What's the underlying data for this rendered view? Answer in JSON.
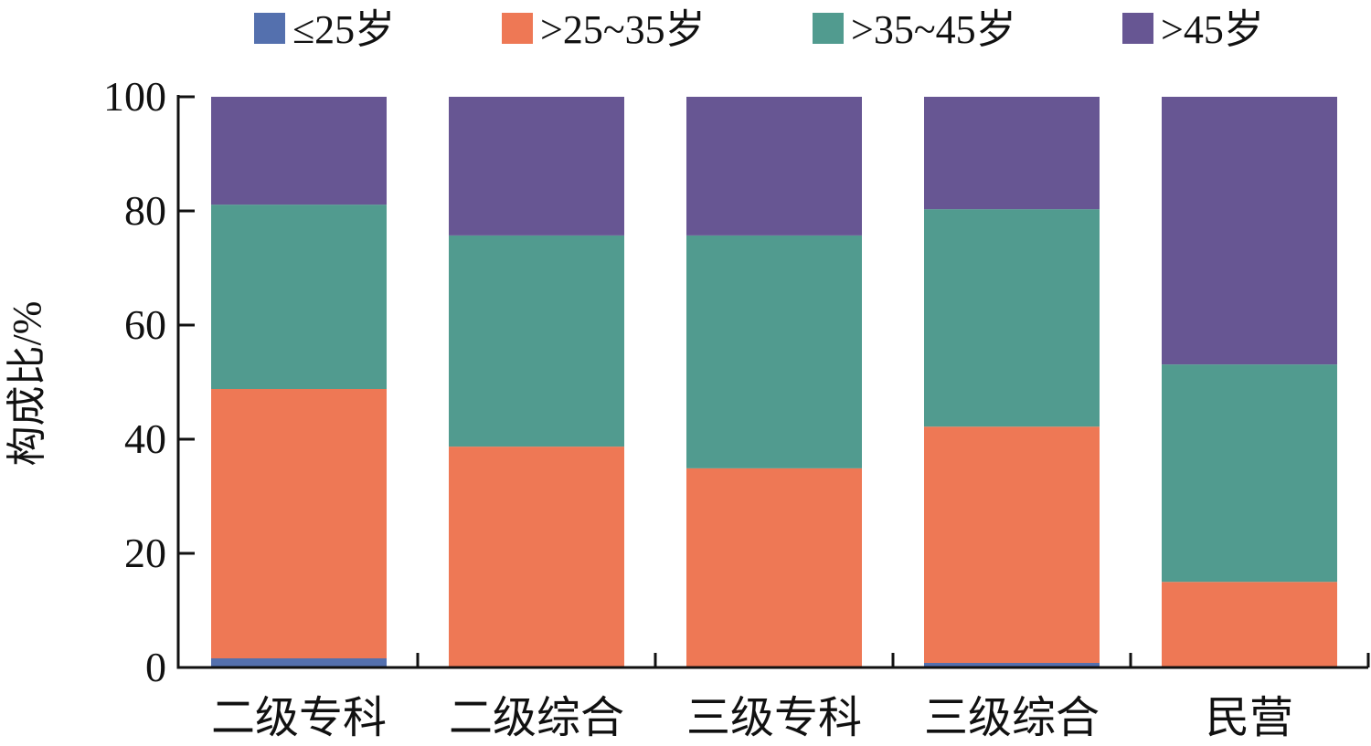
{
  "chart_data": {
    "type": "bar",
    "stacked": true,
    "categories": [
      "二级专科",
      "二级综合",
      "三级专科",
      "三级综合",
      "民营"
    ],
    "series": [
      {
        "name": "≤25岁",
        "color": "#5470ae",
        "values": [
          1.6,
          0,
          0,
          0.8,
          0
        ]
      },
      {
        "name": ">25~35岁",
        "color": "#ee7855",
        "values": [
          47.2,
          38.7,
          34.9,
          41.4,
          15.0
        ]
      },
      {
        "name": ">35~45岁",
        "color": "#519b8f",
        "values": [
          32.3,
          37.0,
          40.8,
          38.1,
          38.1
        ]
      },
      {
        "name": ">45岁",
        "color": "#675693",
        "values": [
          18.9,
          24.3,
          24.3,
          19.7,
          46.9
        ]
      }
    ],
    "xlabel": "",
    "ylabel": "构成比/%",
    "ylim": [
      0,
      100
    ],
    "yticks": [
      "0",
      "20",
      "40",
      "60",
      "80",
      "100"
    ],
    "legend": "top",
    "grid": false
  }
}
